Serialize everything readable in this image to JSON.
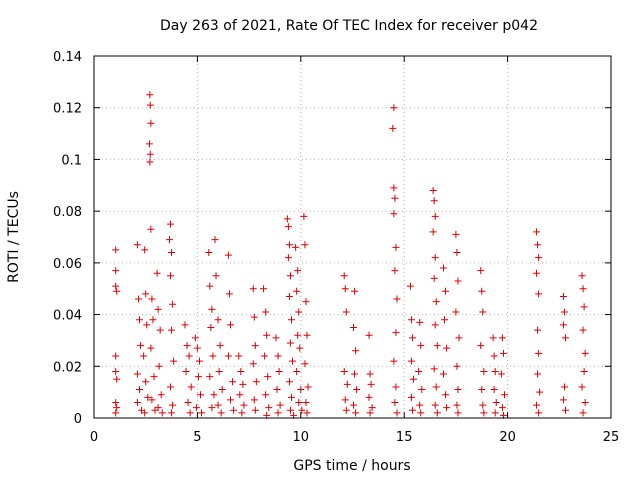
{
  "chart_data": {
    "type": "scatter",
    "title": "Day 263 of 2021, Rate Of TEC Index for receiver p042",
    "xlabel": "GPS time / hours",
    "ylabel": "ROTI / TECUs",
    "xlim": [
      0,
      25
    ],
    "ylim": [
      0,
      0.14
    ],
    "xticks": [
      0,
      5,
      10,
      15,
      20,
      25
    ],
    "xtick_labels": [
      "0",
      "5",
      "10",
      "15",
      "20",
      "25"
    ],
    "yticks": [
      0,
      0.02,
      0.04,
      0.06,
      0.08,
      0.1,
      0.12,
      0.14
    ],
    "ytick_labels": [
      "0",
      "0.02",
      "0.04",
      "0.06",
      "0.08",
      "0.1",
      "0.12",
      "0.14"
    ],
    "grid": true,
    "marker": "plus",
    "color": "#e00000",
    "series": [
      {
        "points": [
          [
            1.05,
            0.065
          ],
          [
            1.05,
            0.057
          ],
          [
            1.05,
            0.051
          ],
          [
            1.1,
            0.049
          ],
          [
            1.05,
            0.024
          ],
          [
            1.05,
            0.018
          ],
          [
            1.1,
            0.015
          ],
          [
            1.05,
            0.006
          ],
          [
            1.1,
            0.004
          ],
          [
            1.05,
            0.002
          ],
          [
            2.1,
            0.067
          ],
          [
            2.15,
            0.046
          ],
          [
            2.2,
            0.038
          ],
          [
            2.25,
            0.028
          ],
          [
            2.1,
            0.017
          ],
          [
            2.2,
            0.011
          ],
          [
            2.1,
            0.006
          ],
          [
            2.3,
            0.003
          ],
          [
            2.45,
            0.065
          ],
          [
            2.5,
            0.048
          ],
          [
            2.55,
            0.036
          ],
          [
            2.4,
            0.024
          ],
          [
            2.5,
            0.014
          ],
          [
            2.6,
            0.008
          ],
          [
            2.45,
            0.002
          ],
          [
            2.7,
            0.125
          ],
          [
            2.72,
            0.121
          ],
          [
            2.75,
            0.114
          ],
          [
            2.68,
            0.106
          ],
          [
            2.72,
            0.102
          ],
          [
            2.7,
            0.099
          ],
          [
            2.75,
            0.073
          ],
          [
            2.8,
            0.046
          ],
          [
            2.85,
            0.038
          ],
          [
            2.75,
            0.027
          ],
          [
            2.9,
            0.016
          ],
          [
            2.8,
            0.007
          ],
          [
            2.95,
            0.003
          ],
          [
            3.05,
            0.056
          ],
          [
            3.1,
            0.042
          ],
          [
            3.2,
            0.034
          ],
          [
            3.15,
            0.02
          ],
          [
            3.25,
            0.009
          ],
          [
            3.1,
            0.004
          ],
          [
            3.3,
            0.002
          ],
          [
            3.7,
            0.075
          ],
          [
            3.65,
            0.069
          ],
          [
            3.75,
            0.064
          ],
          [
            3.7,
            0.055
          ],
          [
            3.8,
            0.044
          ],
          [
            3.75,
            0.034
          ],
          [
            3.85,
            0.022
          ],
          [
            3.7,
            0.012
          ],
          [
            3.8,
            0.005
          ],
          [
            3.75,
            0.002
          ],
          [
            4.4,
            0.036
          ],
          [
            4.5,
            0.028
          ],
          [
            4.6,
            0.024
          ],
          [
            4.45,
            0.018
          ],
          [
            4.7,
            0.012
          ],
          [
            4.55,
            0.006
          ],
          [
            4.65,
            0.002
          ],
          [
            4.9,
            0.031
          ],
          [
            5.0,
            0.027
          ],
          [
            5.1,
            0.022
          ],
          [
            5.05,
            0.016
          ],
          [
            5.15,
            0.009
          ],
          [
            4.95,
            0.004
          ],
          [
            5.2,
            0.002
          ],
          [
            5.55,
            0.064
          ],
          [
            5.6,
            0.051
          ],
          [
            5.7,
            0.042
          ],
          [
            5.65,
            0.035
          ],
          [
            5.75,
            0.024
          ],
          [
            5.6,
            0.016
          ],
          [
            5.8,
            0.009
          ],
          [
            5.7,
            0.004
          ],
          [
            5.85,
            0.069
          ],
          [
            5.9,
            0.055
          ],
          [
            6.0,
            0.038
          ],
          [
            6.1,
            0.028
          ],
          [
            6.05,
            0.018
          ],
          [
            6.2,
            0.011
          ],
          [
            6.0,
            0.005
          ],
          [
            6.15,
            0.002
          ],
          [
            6.5,
            0.063
          ],
          [
            6.55,
            0.048
          ],
          [
            6.6,
            0.036
          ],
          [
            6.5,
            0.024
          ],
          [
            6.7,
            0.014
          ],
          [
            6.6,
            0.007
          ],
          [
            6.75,
            0.003
          ],
          [
            7.0,
            0.024
          ],
          [
            7.1,
            0.018
          ],
          [
            7.2,
            0.013
          ],
          [
            7.05,
            0.009
          ],
          [
            7.25,
            0.005
          ],
          [
            7.15,
            0.002
          ],
          [
            7.7,
            0.05
          ],
          [
            7.75,
            0.039
          ],
          [
            7.8,
            0.028
          ],
          [
            7.7,
            0.021
          ],
          [
            7.85,
            0.014
          ],
          [
            7.75,
            0.007
          ],
          [
            7.8,
            0.003
          ],
          [
            8.2,
            0.05
          ],
          [
            8.3,
            0.041
          ],
          [
            8.35,
            0.032
          ],
          [
            8.25,
            0.024
          ],
          [
            8.4,
            0.016
          ],
          [
            8.3,
            0.009
          ],
          [
            8.45,
            0.004
          ],
          [
            8.35,
            0.001
          ],
          [
            8.8,
            0.031
          ],
          [
            8.9,
            0.024
          ],
          [
            8.95,
            0.018
          ],
          [
            8.85,
            0.011
          ],
          [
            9.0,
            0.005
          ],
          [
            8.9,
            0.002
          ],
          [
            9.35,
            0.077
          ],
          [
            9.4,
            0.074
          ],
          [
            9.45,
            0.067
          ],
          [
            9.4,
            0.062
          ],
          [
            9.5,
            0.055
          ],
          [
            9.45,
            0.047
          ],
          [
            9.55,
            0.038
          ],
          [
            9.5,
            0.029
          ],
          [
            9.6,
            0.022
          ],
          [
            9.45,
            0.014
          ],
          [
            9.55,
            0.008
          ],
          [
            9.5,
            0.003
          ],
          [
            9.65,
            0.001
          ],
          [
            9.75,
            0.066
          ],
          [
            9.85,
            0.057
          ],
          [
            9.8,
            0.049
          ],
          [
            9.9,
            0.041
          ],
          [
            9.85,
            0.032
          ],
          [
            9.95,
            0.027
          ],
          [
            9.8,
            0.018
          ],
          [
            10.0,
            0.011
          ],
          [
            9.9,
            0.006
          ],
          [
            10.05,
            0.003
          ],
          [
            10.15,
            0.078
          ],
          [
            10.2,
            0.067
          ],
          [
            10.25,
            0.045
          ],
          [
            10.3,
            0.032
          ],
          [
            10.2,
            0.021
          ],
          [
            10.35,
            0.012
          ],
          [
            10.25,
            0.006
          ],
          [
            10.3,
            0.002
          ],
          [
            12.1,
            0.055
          ],
          [
            12.15,
            0.05
          ],
          [
            12.2,
            0.041
          ],
          [
            12.1,
            0.018
          ],
          [
            12.25,
            0.013
          ],
          [
            12.15,
            0.007
          ],
          [
            12.2,
            0.003
          ],
          [
            12.6,
            0.049
          ],
          [
            12.55,
            0.035
          ],
          [
            12.65,
            0.026
          ],
          [
            12.6,
            0.017
          ],
          [
            12.7,
            0.011
          ],
          [
            12.55,
            0.005
          ],
          [
            12.65,
            0.002
          ],
          [
            13.3,
            0.032
          ],
          [
            13.35,
            0.017
          ],
          [
            13.4,
            0.013
          ],
          [
            13.3,
            0.008
          ],
          [
            13.45,
            0.004
          ],
          [
            13.35,
            0.002
          ],
          [
            14.5,
            0.12
          ],
          [
            14.45,
            0.112
          ],
          [
            14.5,
            0.089
          ],
          [
            14.55,
            0.085
          ],
          [
            14.5,
            0.079
          ],
          [
            14.6,
            0.066
          ],
          [
            14.55,
            0.057
          ],
          [
            14.65,
            0.046
          ],
          [
            14.6,
            0.033
          ],
          [
            14.5,
            0.022
          ],
          [
            14.6,
            0.012
          ],
          [
            14.55,
            0.006
          ],
          [
            14.65,
            0.002
          ],
          [
            15.3,
            0.051
          ],
          [
            15.35,
            0.038
          ],
          [
            15.4,
            0.031
          ],
          [
            15.35,
            0.022
          ],
          [
            15.45,
            0.015
          ],
          [
            15.35,
            0.008
          ],
          [
            15.4,
            0.003
          ],
          [
            15.75,
            0.037
          ],
          [
            15.8,
            0.028
          ],
          [
            15.7,
            0.018
          ],
          [
            15.85,
            0.011
          ],
          [
            15.75,
            0.005
          ],
          [
            15.8,
            0.002
          ],
          [
            16.4,
            0.088
          ],
          [
            16.45,
            0.084
          ],
          [
            16.5,
            0.078
          ],
          [
            16.4,
            0.072
          ],
          [
            16.5,
            0.062
          ],
          [
            16.45,
            0.054
          ],
          [
            16.55,
            0.045
          ],
          [
            16.5,
            0.036
          ],
          [
            16.6,
            0.028
          ],
          [
            16.45,
            0.019
          ],
          [
            16.55,
            0.012
          ],
          [
            16.5,
            0.005
          ],
          [
            16.6,
            0.002
          ],
          [
            16.9,
            0.058
          ],
          [
            17.0,
            0.049
          ],
          [
            16.95,
            0.038
          ],
          [
            17.05,
            0.027
          ],
          [
            16.9,
            0.017
          ],
          [
            17.0,
            0.009
          ],
          [
            17.05,
            0.004
          ],
          [
            17.5,
            0.071
          ],
          [
            17.55,
            0.064
          ],
          [
            17.6,
            0.053
          ],
          [
            17.5,
            0.041
          ],
          [
            17.65,
            0.031
          ],
          [
            17.55,
            0.02
          ],
          [
            17.6,
            0.011
          ],
          [
            17.55,
            0.005
          ],
          [
            17.6,
            0.002
          ],
          [
            18.7,
            0.057
          ],
          [
            18.75,
            0.049
          ],
          [
            18.8,
            0.041
          ],
          [
            18.7,
            0.028
          ],
          [
            18.85,
            0.018
          ],
          [
            18.75,
            0.011
          ],
          [
            18.8,
            0.005
          ],
          [
            18.85,
            0.002
          ],
          [
            19.3,
            0.031
          ],
          [
            19.35,
            0.024
          ],
          [
            19.4,
            0.018
          ],
          [
            19.35,
            0.011
          ],
          [
            19.45,
            0.006
          ],
          [
            19.4,
            0.002
          ],
          [
            19.75,
            0.031
          ],
          [
            19.8,
            0.025
          ],
          [
            19.7,
            0.017
          ],
          [
            19.85,
            0.009
          ],
          [
            19.75,
            0.004
          ],
          [
            19.8,
            0.001
          ],
          [
            21.4,
            0.072
          ],
          [
            21.45,
            0.067
          ],
          [
            21.5,
            0.062
          ],
          [
            21.4,
            0.056
          ],
          [
            21.5,
            0.048
          ],
          [
            21.45,
            0.034
          ],
          [
            21.5,
            0.025
          ],
          [
            21.45,
            0.017
          ],
          [
            21.55,
            0.01
          ],
          [
            21.4,
            0.005
          ],
          [
            21.5,
            0.002
          ],
          [
            22.7,
            0.047
          ],
          [
            22.75,
            0.041
          ],
          [
            22.7,
            0.036
          ],
          [
            22.8,
            0.031
          ],
          [
            22.75,
            0.012
          ],
          [
            22.7,
            0.007
          ],
          [
            22.8,
            0.003
          ],
          [
            23.6,
            0.055
          ],
          [
            23.65,
            0.05
          ],
          [
            23.7,
            0.043
          ],
          [
            23.65,
            0.034
          ],
          [
            23.75,
            0.025
          ],
          [
            23.7,
            0.018
          ],
          [
            23.6,
            0.012
          ],
          [
            23.75,
            0.006
          ],
          [
            23.65,
            0.002
          ]
        ]
      }
    ]
  }
}
